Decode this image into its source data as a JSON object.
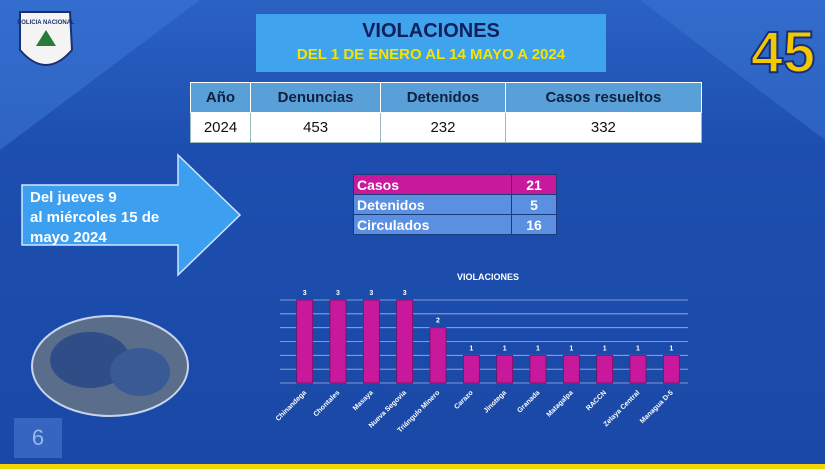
{
  "header": {
    "title": "VIOLACIONES",
    "subtitle": "DEL 1 DE ENERO AL 14 MAYO A 2024"
  },
  "logos": {
    "police": "POLICIA NACIONAL",
    "anniversary": "45"
  },
  "table": {
    "columns": [
      "Año",
      "Denuncias",
      "Detenidos",
      "Casos resueltos"
    ],
    "rows": [
      [
        "2024",
        "453",
        "232",
        "332"
      ]
    ]
  },
  "period": [
    "Del  jueves 9",
    "al miércoles 15 de",
    "mayo 2024"
  ],
  "summary": {
    "rows": [
      [
        "Casos",
        "21"
      ],
      [
        "Detenidos",
        "5"
      ],
      [
        "Circulados",
        "16"
      ]
    ]
  },
  "chart_data": {
    "type": "bar",
    "title": "VIOLACIONES",
    "categories": [
      "Chinandega",
      "Chontales",
      "Masaya",
      "Nueva Segovia",
      "Triángulo Minero",
      "Carazo",
      "Jinotega",
      "Granada",
      "Matagalpa",
      "RACCN",
      "Zelaya Central",
      "Managua D-5"
    ],
    "values": [
      3,
      3,
      3,
      3,
      2,
      1,
      1,
      1,
      1,
      1,
      1,
      1
    ],
    "color": "#c8189c",
    "ylim": [
      0,
      3
    ],
    "yticks": [
      0,
      0.5,
      1,
      1.5,
      2,
      2.5,
      3
    ],
    "grid": true
  },
  "page_number": "6"
}
